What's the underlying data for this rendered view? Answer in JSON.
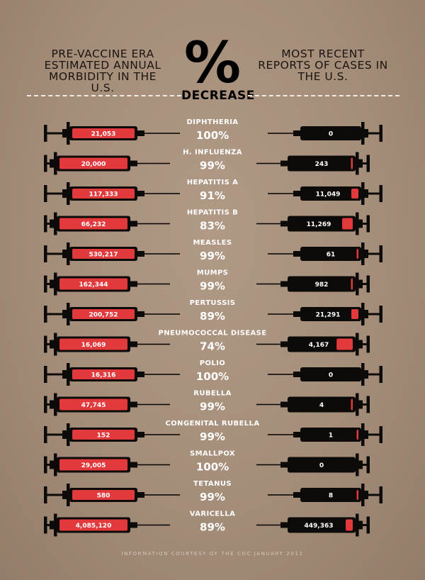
{
  "header": {
    "left_title": "PRE-VACCINE ERA ESTIMATED ANNUAL MORBIDITY IN THE U.S.",
    "center_symbol": "%",
    "center_label": "DECREASE",
    "right_title": "MOST RECENT REPORTS OF CASES IN THE U.S."
  },
  "footer": "INFORMATION COURTESY OF THE CDC JANUARY 2011",
  "colors": {
    "background": "#a8927e",
    "syringe": "#0d0b0a",
    "fluid": "#e23a3c",
    "divider": "#f2ebe4"
  },
  "chart_data": {
    "type": "table",
    "columns": [
      "Pre-vaccine era estimated annual morbidity in the U.S.",
      "% decrease",
      "Most recent reports of cases in the U.S."
    ],
    "rows": [
      {
        "disease": "DIPHTHERIA",
        "pre_vaccine": 21053,
        "pre_vaccine_label": "21,053",
        "decrease": "100%",
        "recent": 0,
        "recent_label": "0"
      },
      {
        "disease": "H. INFLUENZA",
        "pre_vaccine": 20000,
        "pre_vaccine_label": "20,000",
        "decrease": "99%",
        "recent": 243,
        "recent_label": "243"
      },
      {
        "disease": "HEPATITIS A",
        "pre_vaccine": 117333,
        "pre_vaccine_label": "117,333",
        "decrease": "91%",
        "recent": 11049,
        "recent_label": "11,049"
      },
      {
        "disease": "HEPATITIS B",
        "pre_vaccine": 66232,
        "pre_vaccine_label": "66,232",
        "decrease": "83%",
        "recent": 11269,
        "recent_label": "11,269"
      },
      {
        "disease": "MEASLES",
        "pre_vaccine": 530217,
        "pre_vaccine_label": "530,217",
        "decrease": "99%",
        "recent": 61,
        "recent_label": "61"
      },
      {
        "disease": "MUMPS",
        "pre_vaccine": 162344,
        "pre_vaccine_label": "162,344",
        "decrease": "99%",
        "recent": 982,
        "recent_label": "982"
      },
      {
        "disease": "PERTUSSIS",
        "pre_vaccine": 200752,
        "pre_vaccine_label": "200,752",
        "decrease": "89%",
        "recent": 21291,
        "recent_label": "21,291"
      },
      {
        "disease": "PNEUMOCOCCAL DISEASE",
        "pre_vaccine": 16069,
        "pre_vaccine_label": "16,069",
        "decrease": "74%",
        "recent": 4167,
        "recent_label": "4,167"
      },
      {
        "disease": "POLIO",
        "pre_vaccine": 16316,
        "pre_vaccine_label": "16,316",
        "decrease": "100%",
        "recent": 0,
        "recent_label": "0"
      },
      {
        "disease": "RUBELLA",
        "pre_vaccine": 47745,
        "pre_vaccine_label": "47,745",
        "decrease": "99%",
        "recent": 4,
        "recent_label": "4"
      },
      {
        "disease": "CONGENITAL RUBELLA",
        "pre_vaccine": 152,
        "pre_vaccine_label": "152",
        "decrease": "99%",
        "recent": 1,
        "recent_label": "1"
      },
      {
        "disease": "SMALLPOX",
        "pre_vaccine": 29005,
        "pre_vaccine_label": "29,005",
        "decrease": "100%",
        "recent": 0,
        "recent_label": "0"
      },
      {
        "disease": "TETANUS",
        "pre_vaccine": 580,
        "pre_vaccine_label": "580",
        "decrease": "99%",
        "recent": 8,
        "recent_label": "8"
      },
      {
        "disease": "VARICELLA",
        "pre_vaccine": 4085120,
        "pre_vaccine_label": "4,085,120",
        "decrease": "89%",
        "recent": 449363,
        "recent_label": "449,363"
      }
    ]
  }
}
